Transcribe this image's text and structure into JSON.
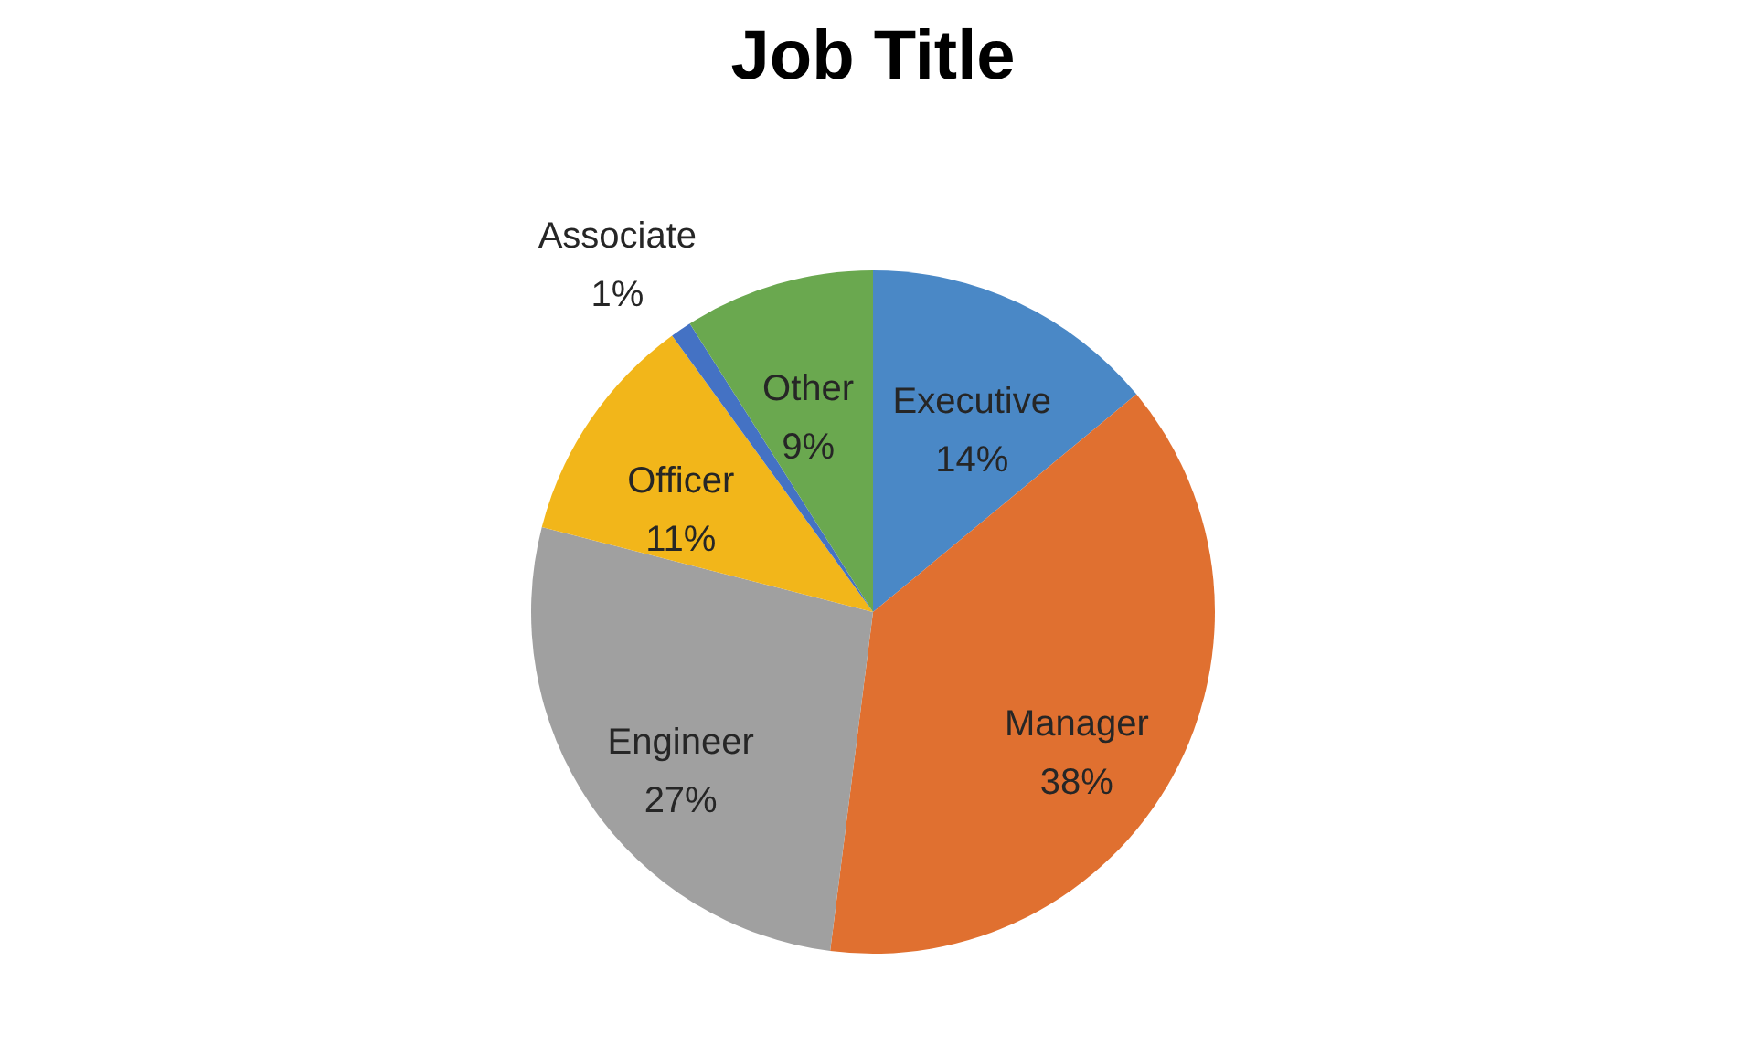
{
  "chart_data": {
    "type": "pie",
    "title": "Job Title",
    "categories": [
      "Executive",
      "Manager",
      "Engineer",
      "Officer",
      "Associate",
      "Other"
    ],
    "values": [
      14,
      38,
      27,
      11,
      1,
      9
    ],
    "colors": [
      "#4a88c6",
      "#e07030",
      "#a0a0a0",
      "#f2b61a",
      "#4472c4",
      "#6aa84f"
    ],
    "value_labels": [
      "14%",
      "38%",
      "27%",
      "11%",
      "1%",
      "9%"
    ],
    "legend": false
  }
}
